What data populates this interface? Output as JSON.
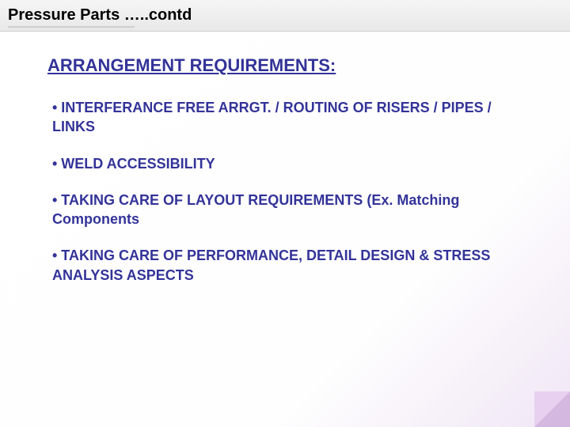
{
  "title": "Pressure Parts …..contd",
  "section_header": "ARRANGEMENT  REQUIREMENTS:",
  "bullets": {
    "b0": "• INTERFERANCE  FREE  ARRGT. / ROUTING  OF RISERS / PIPES / LINKS",
    "b1": "• WELD ACCESSIBILITY",
    "b2": "• TAKING  CARE OF LAYOUT REQUIREMENTS (Ex. Matching Components",
    "b3": "• TAKING CARE OF PERFORMANCE, DETAIL DESIGN & STRESS ANALYSIS ASPECTS"
  },
  "colors": {
    "text_primary": "#333399",
    "title_color": "#000000",
    "title_bar_bg": "#ededed",
    "corner_fold": "#d4b8e0"
  },
  "typography": {
    "title_fontsize": 20,
    "header_fontsize": 22,
    "bullet_fontsize": 18,
    "font_family": "Arial"
  }
}
